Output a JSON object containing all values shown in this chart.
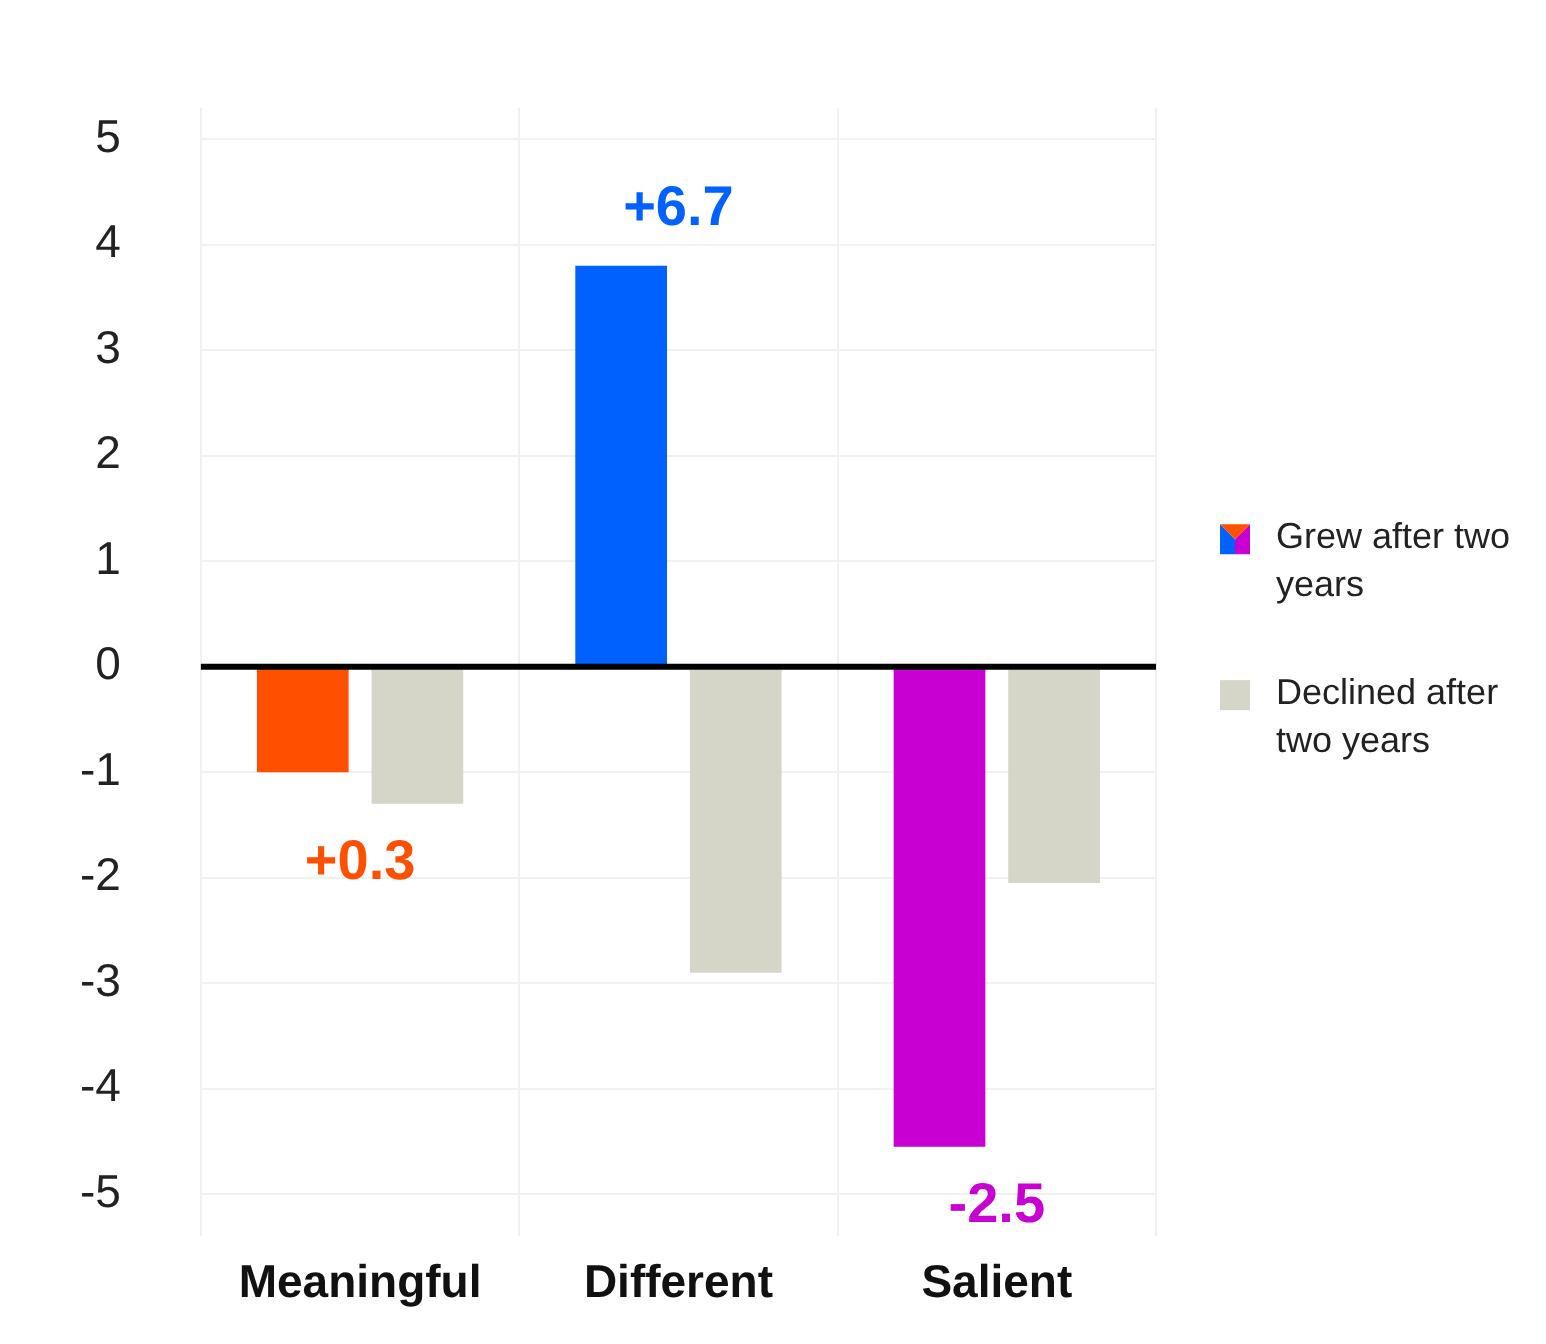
{
  "chart_data": {
    "type": "bar",
    "categories": [
      "Meaningful",
      "Different",
      "Salient"
    ],
    "series": [
      {
        "name": "Grew after two years",
        "colors": [
          "#ff5000",
          "#0061ff",
          "#c800d2"
        ],
        "values": [
          -1.0,
          3.8,
          -4.55
        ]
      },
      {
        "name": "Declined after two years",
        "color": "#d5d5c8",
        "values": [
          -1.3,
          -2.9,
          -2.05
        ]
      }
    ],
    "ylim": [
      -5.4,
      5.3
    ],
    "yticks": [
      -5,
      -4,
      -3,
      -2,
      -1,
      0,
      1,
      2,
      3,
      4,
      5
    ],
    "grid": true,
    "legend": "right",
    "ref_lines": [
      {
        "axis": "y",
        "value": 0,
        "color": "#000000"
      }
    ],
    "annotations": [
      "+0.3",
      "+6.7",
      "-2.5"
    ]
  }
}
